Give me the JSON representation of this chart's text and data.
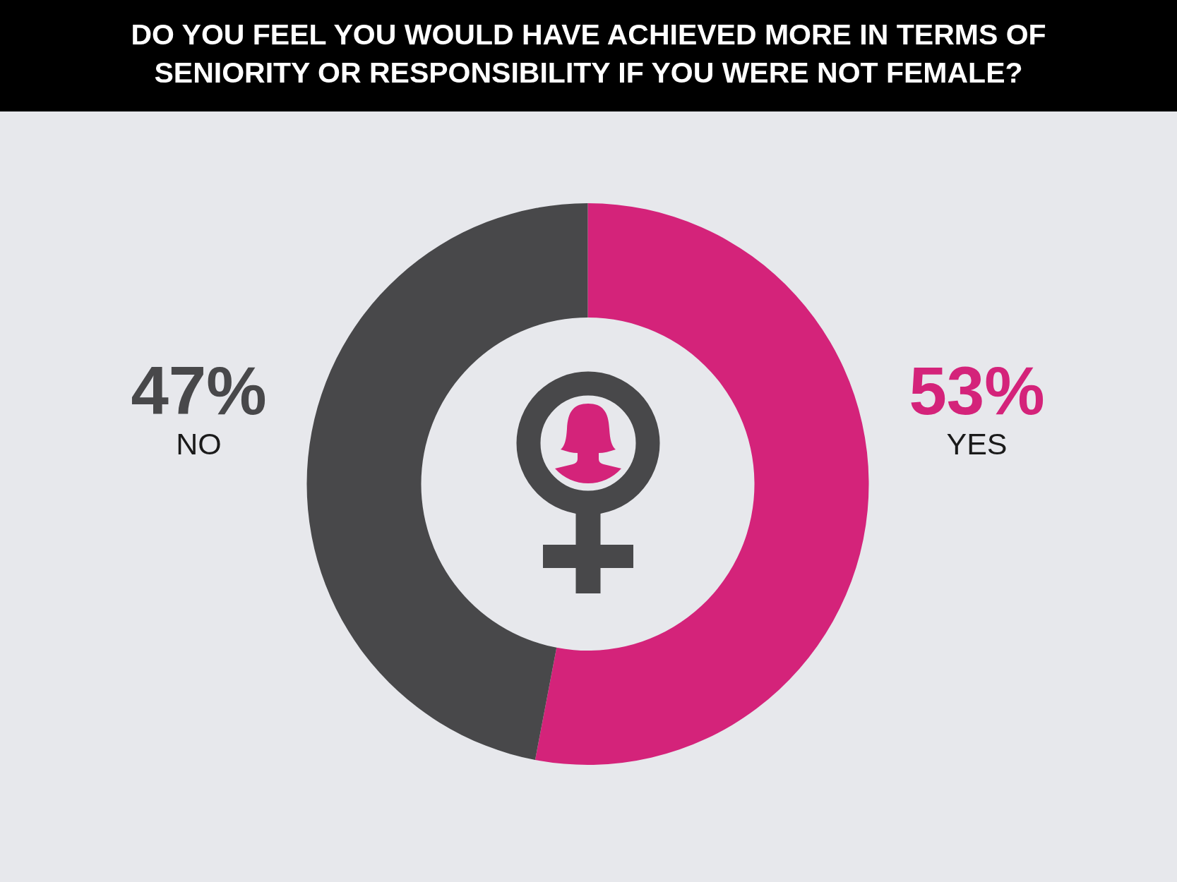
{
  "chart_data": {
    "type": "donut",
    "title": "DO YOU FEEL YOU WOULD HAVE ACHIEVED MORE IN TERMS OF SENIORITY OR RESPONSIBILITY IF YOU WERE NOT FEMALE?",
    "categories": [
      "YES",
      "NO"
    ],
    "values": [
      53,
      47
    ],
    "colors": [
      "#d4237a",
      "#48484a"
    ],
    "value_labels": [
      "53%",
      "47%"
    ]
  }
}
